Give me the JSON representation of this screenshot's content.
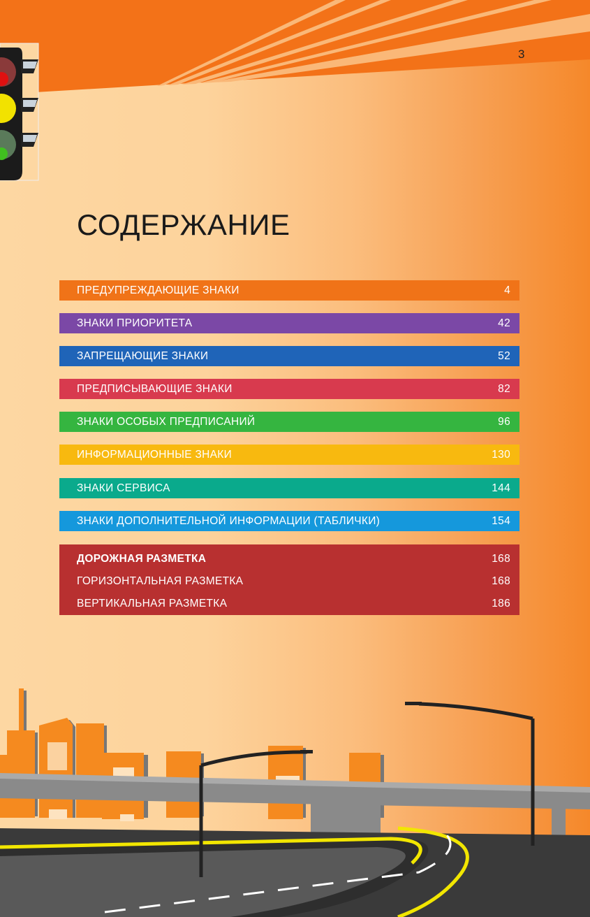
{
  "page_number": "3",
  "title": "СОДЕРЖАНИЕ",
  "toc": [
    {
      "label": "ПРЕДУПРЕЖДАЮЩИЕ ЗНАКИ",
      "page": "4",
      "color": "#f07318"
    },
    {
      "label": "ЗНАКИ ПРИОРИТЕТА",
      "page": "42",
      "color": "#7b48a6"
    },
    {
      "label": "ЗАПРЕЩАЮЩИЕ ЗНАКИ",
      "page": "52",
      "color": "#1f64b8"
    },
    {
      "label": "ПРЕДПИСЫВАЮЩИЕ ЗНАКИ",
      "page": "82",
      "color": "#d83a4e"
    },
    {
      "label": "ЗНАКИ ОСОБЫХ ПРЕДПИСАНИЙ",
      "page": "96",
      "color": "#35b540"
    },
    {
      "label": "ИНФОРМАЦИОННЫЕ ЗНАКИ",
      "page": "130",
      "color": "#f8b90f"
    },
    {
      "label": "ЗНАКИ СЕРВИСА",
      "page": "144",
      "color": "#0aaa8c"
    },
    {
      "label": "ЗНАКИ ДОПОЛНИТЕЛЬНОЙ ИНФОРМАЦИИ (ТАБЛИЧКИ)",
      "page": "154",
      "color": "#1598dc"
    }
  ],
  "markup_section": {
    "color": "#b83030",
    "rows": [
      {
        "label": "ДОРОЖНАЯ РАЗМЕТКА",
        "page": "168"
      },
      {
        "label": "ГОРИЗОНТАЛЬНАЯ РАЗМЕТКА",
        "page": "168"
      },
      {
        "label": "ВЕРТИКАЛЬНАЯ РАЗМЕТКА",
        "page": "186"
      }
    ]
  },
  "illustrations": {
    "top_left": "traffic-light",
    "bottom": "city-road-bridge"
  }
}
